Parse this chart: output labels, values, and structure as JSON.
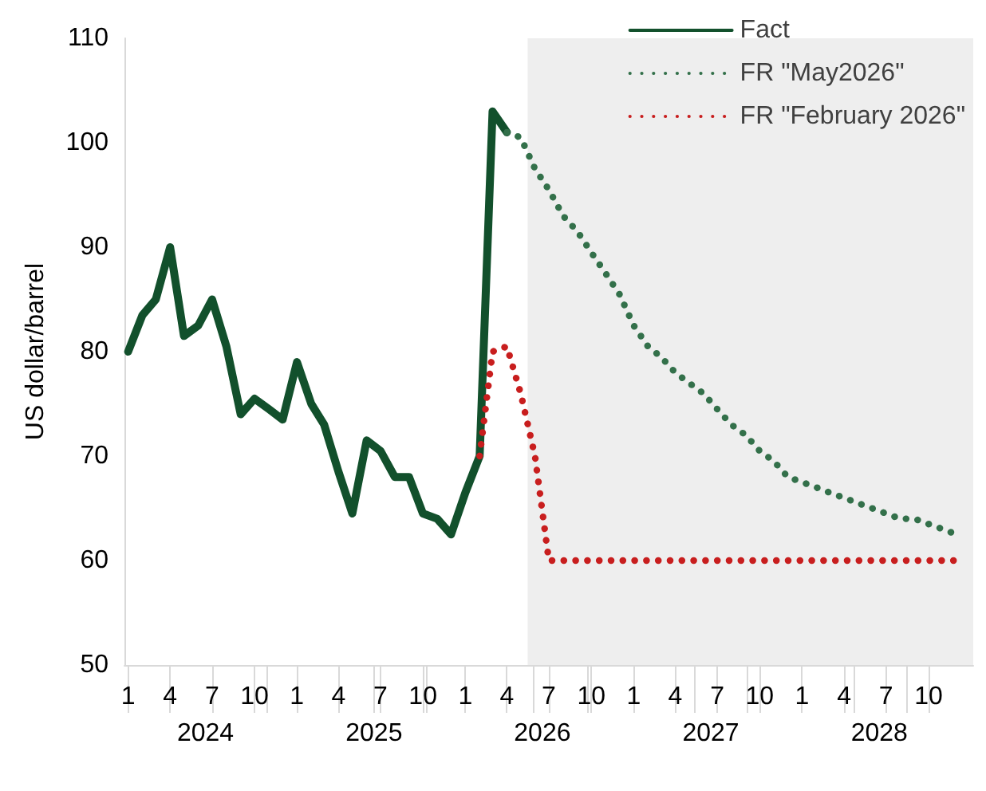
{
  "chart_data": {
    "type": "line",
    "ylabel": "US dollar/barrel",
    "x": [
      "2024-01",
      "2024-02",
      "2024-03",
      "2024-04",
      "2024-05",
      "2024-06",
      "2024-07",
      "2024-08",
      "2024-09",
      "2024-10",
      "2024-11",
      "2024-12",
      "2025-01",
      "2025-02",
      "2025-03",
      "2025-04",
      "2025-05",
      "2025-06",
      "2025-07",
      "2025-08",
      "2025-09",
      "2025-10",
      "2025-11",
      "2025-12",
      "2026-01",
      "2026-02",
      "2026-03",
      "2026-04",
      "2026-05",
      "2026-06",
      "2026-07",
      "2026-08",
      "2026-09",
      "2026-10",
      "2026-11",
      "2026-12",
      "2027-01",
      "2027-02",
      "2027-03",
      "2027-04",
      "2027-05",
      "2027-06",
      "2027-07",
      "2027-08",
      "2027-09",
      "2027-10",
      "2027-11",
      "2027-12",
      "2028-01",
      "2028-02",
      "2028-03",
      "2028-04",
      "2028-05",
      "2028-06",
      "2028-07",
      "2028-08",
      "2028-09",
      "2028-10",
      "2028-11",
      "2028-12"
    ],
    "series": [
      {
        "name": "Fact",
        "color": "#12502c",
        "line_style": "solid",
        "values": [
          80,
          83.5,
          85,
          90,
          81.5,
          82.5,
          85,
          80.5,
          74,
          75.5,
          74.5,
          73.5,
          79,
          75,
          73,
          68.5,
          64.5,
          71.5,
          70.5,
          68,
          68,
          64.5,
          64,
          62.5,
          66.5,
          70,
          103,
          101,
          null,
          null,
          null,
          null,
          null,
          null,
          null,
          null,
          null,
          null,
          null,
          null,
          null,
          null,
          null,
          null,
          null,
          null,
          null,
          null,
          null,
          null,
          null,
          null,
          null,
          null,
          null,
          null,
          null,
          null,
          null,
          null
        ]
      },
      {
        "name": "FR \"May2026\"",
        "color": "#33704a",
        "line_style": "dotted",
        "values": [
          null,
          null,
          null,
          null,
          null,
          null,
          null,
          null,
          null,
          null,
          null,
          null,
          null,
          null,
          null,
          null,
          null,
          null,
          null,
          null,
          null,
          null,
          null,
          null,
          null,
          null,
          null,
          101,
          100.5,
          97.5,
          95.5,
          93,
          91.5,
          89.5,
          87.5,
          85.5,
          82.5,
          80.5,
          79.5,
          78,
          77,
          76,
          74.5,
          73,
          72,
          70.5,
          69.5,
          68,
          67.5,
          67,
          66.5,
          66,
          65.5,
          65,
          64.5,
          64,
          64,
          63.5,
          63,
          62.5
        ]
      },
      {
        "name": "FR \"February 2026\"",
        "color": "#c81e1e",
        "line_style": "dotted",
        "values": [
          null,
          null,
          null,
          null,
          null,
          null,
          null,
          null,
          null,
          null,
          null,
          null,
          null,
          null,
          null,
          null,
          null,
          null,
          null,
          null,
          null,
          null,
          null,
          null,
          null,
          70,
          80,
          80.5,
          76,
          70,
          60,
          60,
          60,
          60,
          60,
          60,
          60,
          60,
          60,
          60,
          60,
          60,
          60,
          60,
          60,
          60,
          60,
          60,
          60,
          60,
          60,
          60,
          60,
          60,
          60,
          60,
          60,
          60,
          60,
          60
        ]
      }
    ],
    "xlim": [
      "2023-12-24",
      "2029-01-06"
    ],
    "xticks": [
      {
        "value": "2024-01",
        "label": "1"
      },
      {
        "value": "2024-04",
        "label": "4"
      },
      {
        "value": "2024-07",
        "label": "7"
      },
      {
        "value": "2024-10",
        "label": "10"
      },
      {
        "value": "2025-01",
        "label": "1"
      },
      {
        "value": "2025-04",
        "label": "4"
      },
      {
        "value": "2025-07",
        "label": "7"
      },
      {
        "value": "2025-10",
        "label": "10"
      },
      {
        "value": "2026-01",
        "label": "1"
      },
      {
        "value": "2026-04",
        "label": "4"
      },
      {
        "value": "2026-07",
        "label": "7"
      },
      {
        "value": "2026-10",
        "label": "10"
      },
      {
        "value": "2027-01",
        "label": "1"
      },
      {
        "value": "2027-04",
        "label": "4"
      },
      {
        "value": "2027-07",
        "label": "7"
      },
      {
        "value": "2027-10",
        "label": "10"
      },
      {
        "value": "2028-01",
        "label": "1"
      },
      {
        "value": "2028-04",
        "label": "4"
      },
      {
        "value": "2028-07",
        "label": "7"
      },
      {
        "value": "2028-10",
        "label": "10"
      }
    ],
    "annotations": [
      "2024",
      "2025",
      "2026",
      "2027",
      "2028"
    ],
    "bands": [
      {
        "axis": "x",
        "from": "2026-05-16",
        "to": "2029-01-06",
        "color": "#eeeeee"
      }
    ],
    "ylim": [
      50,
      110
    ],
    "yticks": [
      50,
      60,
      70,
      80,
      90,
      100,
      110
    ],
    "grid": false,
    "legend": "top right",
    "marker": "none"
  }
}
